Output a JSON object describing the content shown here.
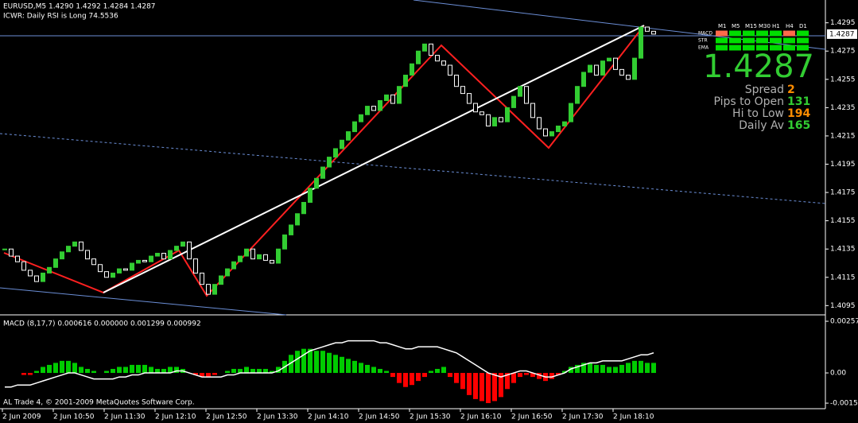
{
  "header": {
    "symbol_line": "EURUSD,M5  1.4290 1.4292 1.4284 1.4287",
    "indicator_line": "ICWR: Daily RSI is Long 74.5536"
  },
  "price_chart": {
    "type": "candlestick",
    "closes": [
      1.4135,
      1.413,
      1.4126,
      1.412,
      1.4116,
      1.4112,
      1.4118,
      1.4122,
      1.4128,
      1.4133,
      1.4137,
      1.414,
      1.4134,
      1.4128,
      1.4124,
      1.4119,
      1.4115,
      1.4118,
      1.4121,
      1.412,
      1.4125,
      1.4127,
      1.4126,
      1.413,
      1.4132,
      1.4128,
      1.4134,
      1.4137,
      1.414,
      1.4128,
      1.4118,
      1.411,
      1.4103,
      1.411,
      1.4116,
      1.4121,
      1.4126,
      1.413,
      1.4135,
      1.4128,
      1.4131,
      1.4127,
      1.4125,
      1.4135,
      1.4145,
      1.4152,
      1.416,
      1.4168,
      1.4178,
      1.4185,
      1.4193,
      1.42,
      1.4206,
      1.4212,
      1.4218,
      1.4225,
      1.423,
      1.4236,
      1.4233,
      1.424,
      1.4244,
      1.4238,
      1.425,
      1.4258,
      1.4266,
      1.4275,
      1.428,
      1.4272,
      1.4268,
      1.4265,
      1.4258,
      1.425,
      1.4245,
      1.4238,
      1.4232,
      1.423,
      1.4222,
      1.4228,
      1.4225,
      1.4235,
      1.4243,
      1.425,
      1.4238,
      1.4228,
      1.422,
      1.4215,
      1.4218,
      1.4222,
      1.4225,
      1.4238,
      1.425,
      1.426,
      1.4265,
      1.4258,
      1.4268,
      1.427,
      1.4262,
      1.4258,
      1.4255,
      1.427,
      1.4292,
      1.4289,
      1.4287
    ],
    "up_color": "#32cd32",
    "down_color": "#ffffff",
    "ylim": [
      1.4089,
      1.431
    ],
    "yticks": [
      1.4295,
      1.4275,
      1.4255,
      1.4235,
      1.4215,
      1.4195,
      1.4175,
      1.4155,
      1.4135,
      1.4115,
      1.4095
    ],
    "current_price": 1.4287
  },
  "macd": {
    "type": "histogram",
    "title": "MACD  (8,17,7) 0.000616 0.000000 0.001299 0.000992",
    "histogram": [
      0,
      0,
      0,
      -0.0001,
      -0.0001,
      0.0001,
      0.0003,
      0.0004,
      0.0005,
      0.0006,
      0.0006,
      0.0005,
      0.0003,
      0.0002,
      0.0001,
      0,
      0.0001,
      0.0002,
      0.0003,
      0.0003,
      0.0004,
      0.0004,
      0.0004,
      0.0003,
      0.0002,
      0.0002,
      0.0003,
      0.0003,
      0.0002,
      0,
      -0.0001,
      -0.0002,
      -0.0002,
      -0.0001,
      0,
      0.0001,
      0.0002,
      0.0002,
      0.0003,
      0.0002,
      0.0002,
      0.0002,
      0.0001,
      0.0003,
      0.0006,
      0.0009,
      0.0011,
      0.0012,
      0.0012,
      0.0011,
      0.0011,
      0.001,
      0.0009,
      0.0008,
      0.0007,
      0.0006,
      0.0005,
      0.0004,
      0.0003,
      0.0002,
      0.0001,
      -0.0002,
      -0.0005,
      -0.0007,
      -0.0006,
      -0.0004,
      -0.0002,
      0.0001,
      0.0002,
      0.0003,
      -0.0002,
      -0.0005,
      -0.0008,
      -0.0011,
      -0.0013,
      -0.0014,
      -0.0015,
      -0.0014,
      -0.0012,
      -0.0008,
      -0.0005,
      -0.0002,
      -0.0001,
      -0.0002,
      -0.0003,
      -0.0004,
      -0.0003,
      -0.0001,
      0.0001,
      0.0003,
      0.0004,
      0.0005,
      0.0005,
      0.0004,
      0.0004,
      0.0003,
      0.0003,
      0.0004,
      0.0005,
      0.0006,
      0.0006,
      0.0005,
      0.0005
    ],
    "line": [
      -0.0007,
      -0.0007,
      -0.0006,
      -0.0006,
      -0.0006,
      -0.0005,
      -0.0004,
      -0.0003,
      -0.0002,
      -0.0001,
      0,
      0,
      -0.0001,
      -0.0002,
      -0.0003,
      -0.0003,
      -0.0003,
      -0.0003,
      -0.0002,
      -0.0002,
      -0.0001,
      -0.0001,
      0,
      0,
      0,
      0,
      0,
      0.0001,
      0.0001,
      0,
      -0.0001,
      -0.0002,
      -0.0002,
      -0.0002,
      -0.0002,
      -0.0001,
      -0.0001,
      0,
      0,
      0,
      0,
      0,
      0,
      0.0001,
      0.0003,
      0.0005,
      0.0007,
      0.0009,
      0.0011,
      0.0012,
      0.0013,
      0.0014,
      0.0015,
      0.0015,
      0.0016,
      0.0016,
      0.0016,
      0.0016,
      0.0016,
      0.0015,
      0.0015,
      0.0014,
      0.0013,
      0.0012,
      0.0012,
      0.0013,
      0.0013,
      0.0013,
      0.0013,
      0.0012,
      0.0011,
      0.001,
      0.0008,
      0.0006,
      0.0004,
      0.0002,
      0,
      -0.0001,
      -0.0002,
      -0.0001,
      0,
      0.0001,
      0.0001,
      0,
      -0.0001,
      -0.0002,
      -0.0002,
      -0.0001,
      0,
      0.0002,
      0.0003,
      0.0004,
      0.0005,
      0.0005,
      0.0006,
      0.0006,
      0.0006,
      0.0006,
      0.0007,
      0.0008,
      0.0009,
      0.0009,
      0.001
    ],
    "positive_color": "#00cc00",
    "negative_color": "#ff0000",
    "line_color": "#ffffff",
    "ylim": [
      -0.0017,
      0.00281
    ],
    "yticks": [
      0.002571,
      {
        "value": 0,
        "label": "0.00"
      },
      -0.001504
    ]
  },
  "time_axis": [
    "2 Jun 2009",
    "2 Jun 10:50",
    "2 Jun 11:30",
    "2 Jun 12:10",
    "2 Jun 12:50",
    "2 Jun 13:30",
    "2 Jun 14:10",
    "2 Jun 14:50",
    "2 Jun 15:30",
    "2 Jun 16:10",
    "2 Jun 16:50",
    "2 Jun 17:30",
    "2 Jun 18:10"
  ],
  "footer": "AL Trade 4, © 2001-2009 MetaQuotes Software Corp.",
  "signal_panel": {
    "timeframes": [
      "M1",
      "M5",
      "M15",
      "M30",
      "H1",
      "H4",
      "D1"
    ],
    "rows": [
      {
        "name": "MACD",
        "colors": [
          "#ff6a4a",
          "#00dd00",
          "#00dd00",
          "#00dd00",
          "#00dd00",
          "#ff6a4a",
          "#00dd00"
        ]
      },
      {
        "name": "STR",
        "colors": [
          "#00dd00",
          "#00dd00",
          "#00dd00",
          "#00dd00",
          "#00dd00",
          "#00dd00",
          "#00dd00"
        ]
      },
      {
        "name": "EMA",
        "colors": [
          "#00dd00",
          "#00dd00",
          "#00dd00",
          "#00dd00",
          "#00dd00",
          "#00dd00",
          "#00dd00"
        ]
      }
    ]
  },
  "info": {
    "price": "1.4287",
    "rows": [
      {
        "label": "Spread",
        "value": "2",
        "color": "#ff8c00"
      },
      {
        "label": "Pips to Open",
        "value": "131",
        "color": "#32cd32"
      },
      {
        "label": "Hi to Low",
        "value": "194",
        "color": "#ff8c00"
      },
      {
        "label": "Daily Av",
        "value": "165",
        "color": "#32cd32"
      }
    ]
  }
}
